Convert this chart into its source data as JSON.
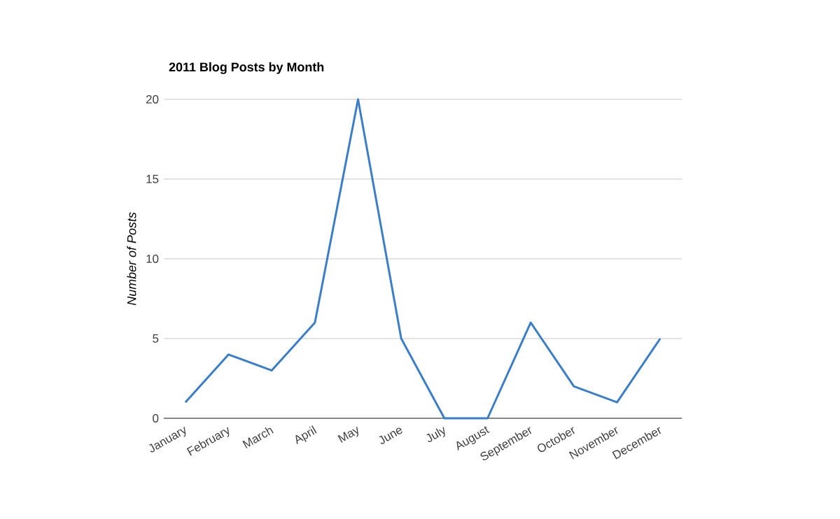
{
  "chart_data": {
    "type": "line",
    "title": "2011 Blog Posts by Month",
    "ylabel": "Number of Posts",
    "categories": [
      "January",
      "February",
      "March",
      "April",
      "May",
      "June",
      "July",
      "August",
      "September",
      "October",
      "November",
      "December"
    ],
    "series": [
      {
        "color": "#3a7dc9",
        "values": [
          1,
          4,
          3,
          6,
          20,
          5,
          0,
          0,
          6,
          2,
          1,
          5
        ]
      }
    ],
    "ylim": [
      0,
      20
    ],
    "yticks": [
      0,
      5,
      10,
      15,
      20
    ],
    "grid": "y",
    "marker": "none",
    "line_style": "solid"
  }
}
